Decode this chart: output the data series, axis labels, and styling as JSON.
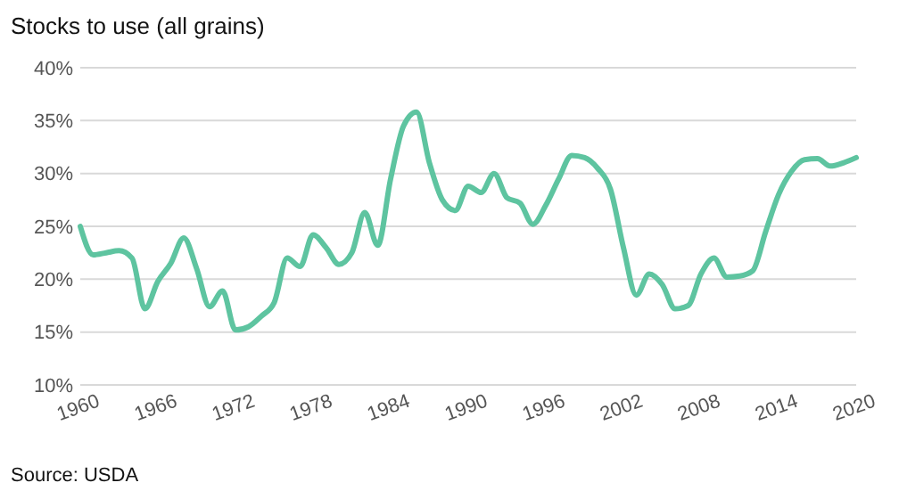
{
  "chart_data": {
    "type": "line",
    "title": "Stocks to use (all grains)",
    "x": [
      1960,
      1961,
      1962,
      1963,
      1964,
      1965,
      1966,
      1967,
      1968,
      1969,
      1970,
      1971,
      1972,
      1973,
      1974,
      1975,
      1976,
      1977,
      1978,
      1979,
      1980,
      1981,
      1982,
      1983,
      1984,
      1985,
      1986,
      1987,
      1988,
      1989,
      1990,
      1991,
      1992,
      1993,
      1994,
      1995,
      1996,
      1997,
      1998,
      1999,
      2000,
      2001,
      2002,
      2003,
      2004,
      2005,
      2006,
      2007,
      2008,
      2009,
      2010,
      2011,
      2012,
      2013,
      2014,
      2015,
      2016,
      2017,
      2018,
      2019,
      2020
    ],
    "series": [
      {
        "color": "#5ec4a0",
        "values": [
          25,
          22.3,
          22.5,
          22.7,
          22,
          17.2,
          19.8,
          21.5,
          23.9,
          21,
          17.4,
          18.9,
          15.2,
          15.5,
          16.5,
          17.8,
          22,
          21.2,
          24.2,
          23,
          21.4,
          22.5,
          26.3,
          23.2,
          29.5,
          34.5,
          35.8,
          31,
          27.5,
          26.5,
          28.8,
          28.2,
          30,
          27.7,
          27.2,
          25.2,
          27,
          29.5,
          31.7,
          31.5,
          30.5,
          28.5,
          23,
          18.5,
          20.5,
          19.5,
          17.2,
          17.5,
          20.5,
          22,
          20.2,
          20.3,
          20.8,
          24.5,
          28,
          30.2,
          31.3,
          31.4,
          30.7,
          31,
          31.5
        ]
      }
    ],
    "xlim": [
      1960,
      2020
    ],
    "xticks": [
      1960,
      1966,
      1972,
      1978,
      1984,
      1990,
      1996,
      2002,
      2008,
      2014,
      2020
    ],
    "ylim": [
      10,
      40
    ],
    "yticks": [
      {
        "value": 10,
        "label": "10%"
      },
      {
        "value": 15,
        "label": "15%"
      },
      {
        "value": 20,
        "label": "20%"
      },
      {
        "value": 25,
        "label": "25%"
      },
      {
        "value": 30,
        "label": "30%"
      },
      {
        "value": 35,
        "label": "35%"
      },
      {
        "value": 40,
        "label": "40%"
      }
    ],
    "grid": "y",
    "marker": "none",
    "line_style": "solid",
    "annotations": [
      "Source: USDA"
    ]
  }
}
